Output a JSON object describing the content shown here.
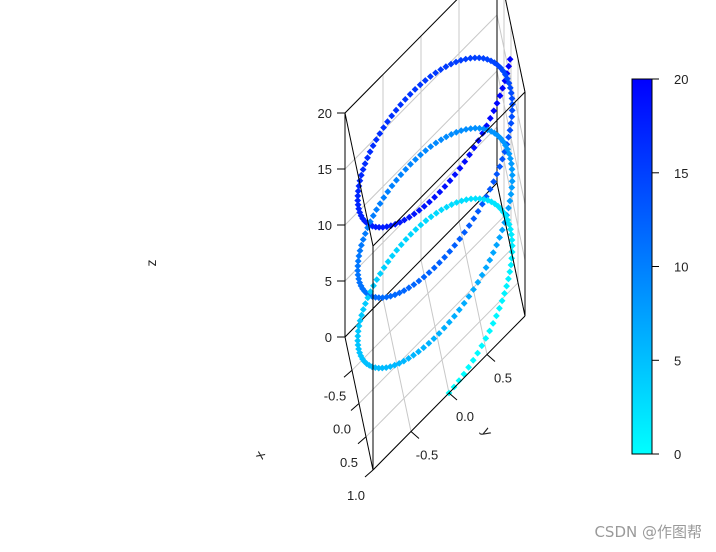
{
  "chart_data": {
    "type": "scatter",
    "subtype": "3d-helix-scatter",
    "xlabel": "x",
    "ylabel": "y",
    "zlabel": "z",
    "x_ticks": [
      "-0.5",
      "0.0",
      "0.5",
      "1.0"
    ],
    "y_ticks": [
      "-0.5",
      "0.0",
      "0.5"
    ],
    "z_ticks": [
      "0",
      "5",
      "10",
      "15",
      "20"
    ],
    "xlim": [
      -1,
      1
    ],
    "ylim": [
      -1,
      1
    ],
    "zlim": [
      0,
      20
    ],
    "series": [
      {
        "x_formula": "cos(z)",
        "y_formula": "sin(z)",
        "z_range": [
          0,
          20
        ],
        "n_points": 300,
        "color_by": "z"
      }
    ],
    "colorbar": {
      "min": 0,
      "max": 20,
      "ticks": [
        "0",
        "5",
        "10",
        "15",
        "20"
      ],
      "color_low": "#00FFFF",
      "color_high": "#0000FF",
      "placement": "right"
    },
    "grid": true,
    "box": true
  },
  "watermark": "CSDN @作图帮"
}
